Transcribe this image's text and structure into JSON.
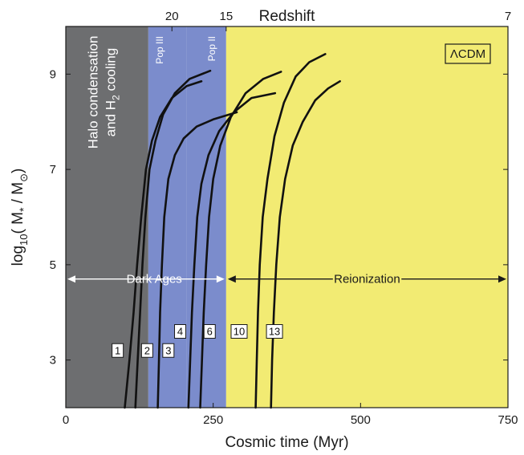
{
  "chart_data": {
    "type": "line",
    "xlabel": "Cosmic time (Myr)",
    "ylabel_main": "log",
    "ylabel_sub": "10",
    "ylabel_rest": "( M",
    "ylabel_star": "*",
    "ylabel_div": " / M",
    "ylabel_sun": "⊙",
    "ylabel_close": ")",
    "top_axis_label": "Redshift",
    "xlim": [
      0,
      750
    ],
    "ylim": [
      2,
      10
    ],
    "x_ticks": [
      0,
      250,
      500,
      750
    ],
    "y_ticks": [
      3,
      5,
      7,
      9
    ],
    "top_ticks": [
      {
        "label": "20",
        "time": 180
      },
      {
        "label": "15",
        "time": 272
      },
      {
        "label": "7",
        "time": 750
      }
    ],
    "regions": [
      {
        "name": "halo",
        "x0": 0,
        "x1": 140,
        "color": "#6d6e70",
        "line1": "Halo condensation",
        "line2_a": "and H",
        "line2_sub": "2",
        "line2_b": " cooling"
      },
      {
        "name": "pop3",
        "x0": 140,
        "x1": 205,
        "color": "#7b8ccc",
        "label": "Pop III"
      },
      {
        "name": "pop2",
        "x0": 205,
        "x1": 272,
        "color": "#7b8ccc",
        "label": "Pop II"
      },
      {
        "name": "reion",
        "x0": 272,
        "x1": 750,
        "color": "#f2eb73"
      }
    ],
    "eras": [
      {
        "label": "Dark Ages",
        "x0": 0,
        "x1": 272,
        "y": 4.7,
        "color": "#ffffff"
      },
      {
        "label": "Reionization",
        "x0": 272,
        "x1": 750,
        "y": 4.7,
        "color": "#1a1a1a"
      }
    ],
    "model_label": "ΛCDM",
    "series": [
      {
        "name": "1",
        "label_x": 88,
        "label_y": 3.2,
        "x": [
          100,
          108,
          115,
          121,
          128,
          136,
          146,
          160,
          180,
          205,
          230
        ],
        "y": [
          2,
          3,
          4,
          5,
          6,
          7,
          7.6,
          8.1,
          8.5,
          8.75,
          8.85
        ]
      },
      {
        "name": "2",
        "label_x": 138,
        "label_y": 3.2,
        "x": [
          118,
          122,
          126,
          130,
          135,
          142,
          152,
          165,
          185,
          210,
          245
        ],
        "y": [
          2,
          3,
          4,
          5,
          6,
          7,
          7.6,
          8.15,
          8.6,
          8.9,
          9.07
        ]
      },
      {
        "name": "3",
        "label_x": 174,
        "label_y": 3.2,
        "x": [
          156,
          158,
          160,
          163,
          167,
          174,
          185,
          200,
          222,
          250,
          290
        ],
        "y": [
          2,
          3,
          4,
          5,
          6,
          6.8,
          7.3,
          7.65,
          7.9,
          8.05,
          8.2
        ]
      },
      {
        "name": "4",
        "label_x": 194,
        "label_y": 3.6,
        "x": [
          208,
          211,
          214,
          218,
          223,
          230,
          242,
          260,
          285,
          315,
          355
        ],
        "y": [
          2,
          3,
          4,
          5,
          6,
          6.7,
          7.3,
          7.8,
          8.2,
          8.5,
          8.6
        ]
      },
      {
        "name": "6",
        "label_x": 244,
        "label_y": 3.6,
        "x": [
          228,
          231,
          234,
          238,
          243,
          250,
          262,
          280,
          305,
          335,
          365
        ],
        "y": [
          2,
          3,
          4,
          5,
          6,
          6.8,
          7.5,
          8.1,
          8.6,
          8.9,
          9.05
        ]
      },
      {
        "name": "10",
        "label_x": 294,
        "label_y": 3.6,
        "x": [
          322,
          324,
          326,
          329,
          334,
          342,
          354,
          370,
          390,
          413,
          440
        ],
        "y": [
          2,
          3,
          4,
          5,
          6,
          6.8,
          7.7,
          8.4,
          8.95,
          9.25,
          9.42
        ]
      },
      {
        "name": "13",
        "label_x": 354,
        "label_y": 3.6,
        "x": [
          348,
          350,
          353,
          357,
          363,
          372,
          385,
          402,
          423,
          445,
          465
        ],
        "y": [
          2,
          3,
          4,
          5,
          6,
          6.8,
          7.5,
          8.0,
          8.45,
          8.7,
          8.85
        ]
      }
    ]
  }
}
